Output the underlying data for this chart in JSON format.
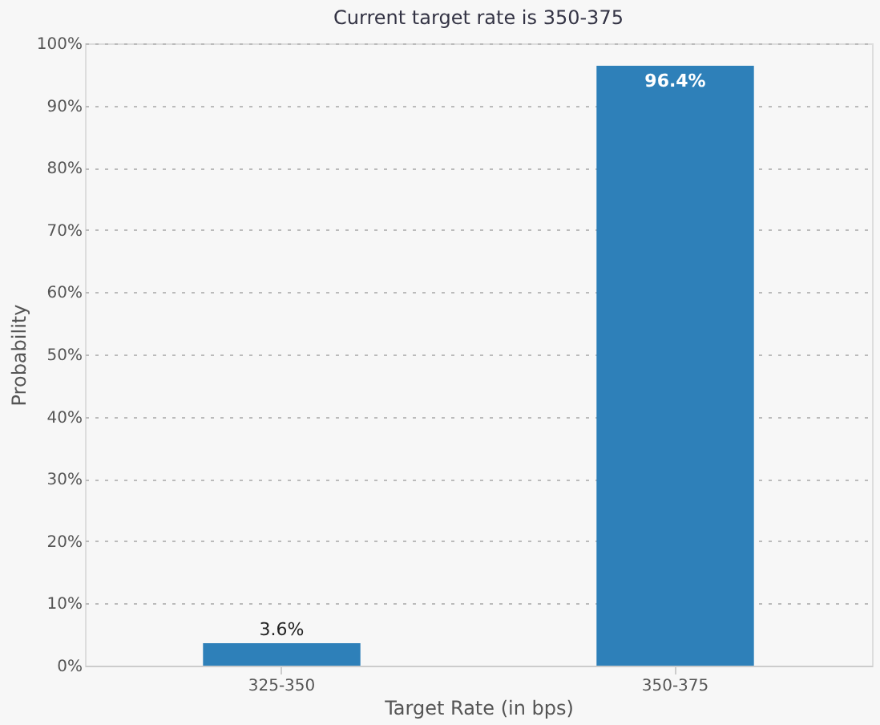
{
  "chart_data": {
    "type": "bar",
    "title": "Current target rate is 350-375",
    "xlabel": "Target Rate (in bps)",
    "ylabel": "Probability",
    "categories": [
      "325-350",
      "350-375"
    ],
    "values": [
      3.6,
      96.4
    ],
    "value_labels": [
      "3.6%",
      "96.4%"
    ],
    "color": "#2e80b9",
    "ylim": [
      0,
      100
    ],
    "yticks": [
      {
        "value": 0,
        "label": "0%"
      },
      {
        "value": 10,
        "label": "10%"
      },
      {
        "value": 20,
        "label": "20%"
      },
      {
        "value": 30,
        "label": "30%"
      },
      {
        "value": 40,
        "label": "40%"
      },
      {
        "value": 50,
        "label": "50%"
      },
      {
        "value": 60,
        "label": "60%"
      },
      {
        "value": 70,
        "label": "70%"
      },
      {
        "value": 80,
        "label": "80%"
      },
      {
        "value": 90,
        "label": "90%"
      },
      {
        "value": 100,
        "label": "100%"
      }
    ],
    "grid": "y"
  }
}
